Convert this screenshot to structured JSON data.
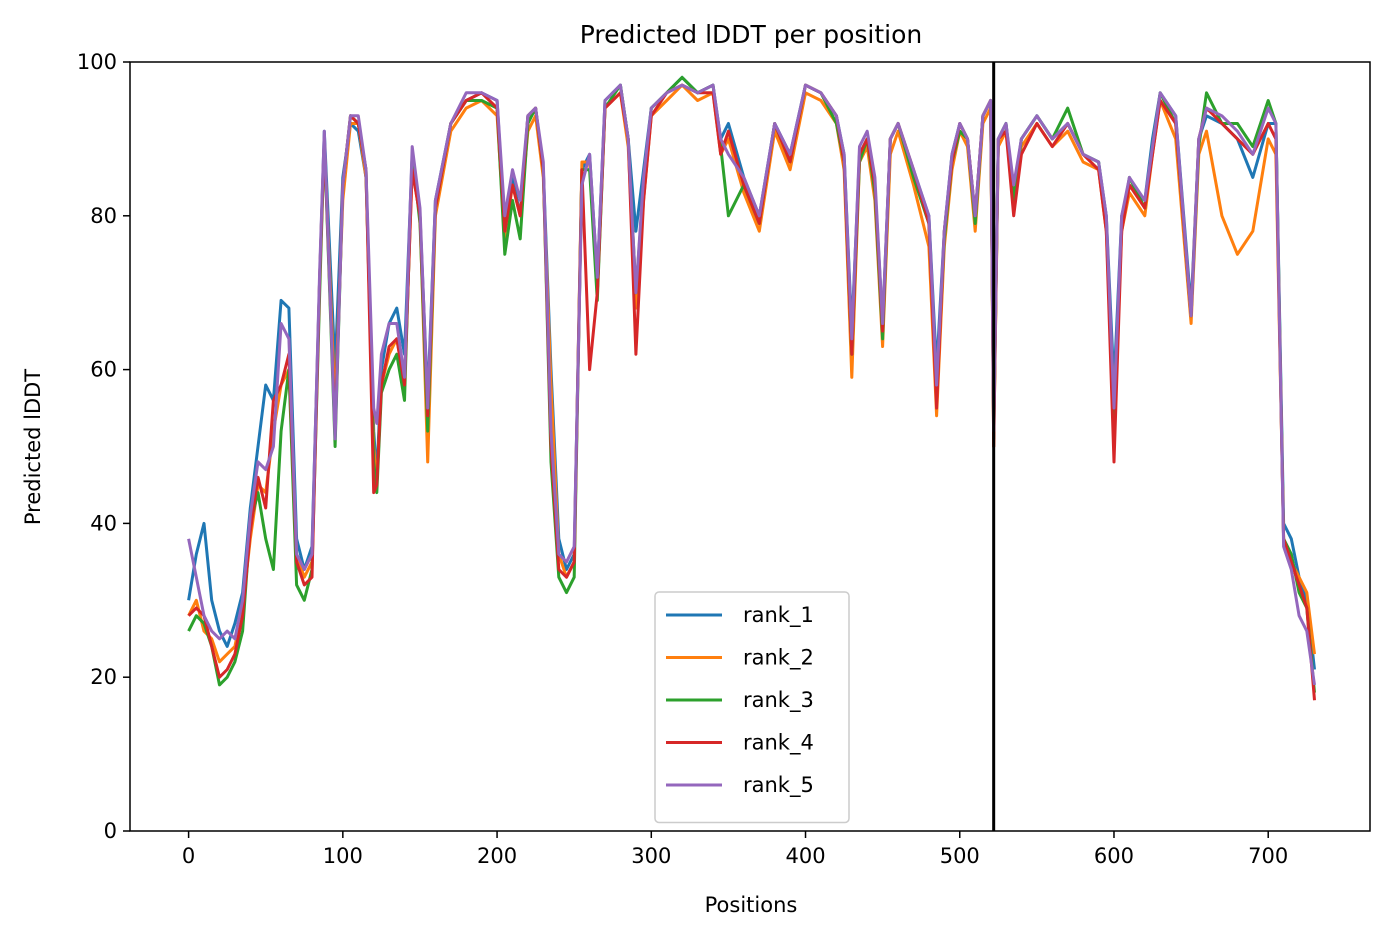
{
  "chart_data": {
    "type": "line",
    "title": "Predicted lDDT per position",
    "xlabel": "Positions",
    "ylabel": "Predicted lDDT",
    "xlim": [
      -38,
      766
    ],
    "ylim": [
      0,
      100
    ],
    "xticks": [
      0,
      100,
      200,
      300,
      400,
      500,
      600,
      700
    ],
    "yticks": [
      0,
      20,
      40,
      60,
      80,
      100
    ],
    "grid": false,
    "legend_position": "lower center",
    "vline": {
      "x": 522,
      "color": "#000000"
    },
    "x": [
      0,
      5,
      10,
      15,
      20,
      25,
      30,
      35,
      40,
      45,
      50,
      55,
      60,
      65,
      70,
      75,
      80,
      85,
      88,
      95,
      100,
      105,
      110,
      115,
      120,
      122,
      125,
      130,
      135,
      140,
      145,
      150,
      155,
      160,
      170,
      180,
      190,
      200,
      205,
      210,
      215,
      220,
      225,
      230,
      235,
      240,
      245,
      250,
      255,
      260,
      265,
      270,
      280,
      285,
      290,
      295,
      300,
      310,
      320,
      330,
      340,
      345,
      350,
      360,
      370,
      380,
      390,
      400,
      410,
      420,
      425,
      430,
      435,
      440,
      445,
      450,
      455,
      460,
      470,
      480,
      485,
      490,
      495,
      500,
      505,
      510,
      515,
      520,
      522,
      525,
      530,
      535,
      540,
      550,
      560,
      570,
      580,
      590,
      595,
      600,
      605,
      610,
      620,
      625,
      630,
      640,
      650,
      655,
      660,
      670,
      680,
      690,
      700,
      705,
      710,
      715,
      720,
      725,
      730
    ],
    "series": [
      {
        "name": "rank_1",
        "color": "#1f77b4",
        "values": [
          30,
          36,
          40,
          30,
          26,
          24,
          27,
          31,
          42,
          50,
          58,
          56,
          69,
          68,
          38,
          34,
          37,
          72,
          91,
          60,
          85,
          92,
          91,
          85,
          52,
          46,
          60,
          66,
          68,
          62,
          88,
          80,
          56,
          82,
          92,
          95,
          96,
          95,
          78,
          85,
          80,
          93,
          94,
          86,
          60,
          38,
          34,
          36,
          86,
          88,
          72,
          95,
          97,
          90,
          78,
          86,
          94,
          96,
          98,
          96,
          97,
          90,
          92,
          85,
          80,
          92,
          88,
          97,
          96,
          93,
          88,
          65,
          88,
          90,
          84,
          66,
          90,
          92,
          86,
          80,
          60,
          78,
          88,
          92,
          90,
          80,
          93,
          95,
          52,
          90,
          92,
          83,
          90,
          93,
          90,
          92,
          88,
          87,
          80,
          58,
          80,
          84,
          82,
          90,
          96,
          93,
          68,
          90,
          93,
          92,
          90,
          85,
          92,
          92,
          40,
          38,
          33,
          30,
          21
        ]
      },
      {
        "name": "rank_2",
        "color": "#ff7f0e",
        "values": [
          28,
          30,
          26,
          25,
          22,
          23,
          24,
          29,
          38,
          45,
          44,
          52,
          58,
          60,
          36,
          33,
          35,
          72,
          90,
          55,
          82,
          92,
          92,
          85,
          50,
          45,
          58,
          62,
          64,
          58,
          86,
          80,
          48,
          80,
          91,
          94,
          95,
          93,
          77,
          84,
          80,
          91,
          93,
          85,
          58,
          36,
          33,
          35,
          87,
          87,
          70,
          94,
          96,
          89,
          68,
          82,
          93,
          95,
          97,
          95,
          96,
          88,
          90,
          83,
          78,
          91,
          86,
          96,
          95,
          92,
          86,
          59,
          87,
          89,
          82,
          63,
          88,
          91,
          84,
          76,
          54,
          76,
          86,
          91,
          89,
          78,
          92,
          94,
          50,
          89,
          91,
          82,
          89,
          92,
          89,
          91,
          87,
          86,
          78,
          55,
          78,
          83,
          80,
          88,
          95,
          90,
          66,
          88,
          91,
          80,
          75,
          78,
          90,
          88,
          38,
          35,
          33,
          31,
          23
        ]
      },
      {
        "name": "rank_3",
        "color": "#2ca02c",
        "values": [
          26,
          28,
          27,
          24,
          19,
          20,
          22,
          26,
          40,
          44,
          38,
          34,
          52,
          60,
          32,
          30,
          34,
          70,
          90,
          50,
          84,
          93,
          92,
          86,
          48,
          44,
          57,
          60,
          62,
          56,
          88,
          79,
          52,
          81,
          92,
          95,
          95,
          94,
          75,
          82,
          77,
          92,
          94,
          86,
          48,
          33,
          31,
          33,
          86,
          86,
          69,
          94,
          97,
          90,
          70,
          84,
          94,
          96,
          98,
          96,
          97,
          89,
          80,
          84,
          79,
          92,
          87,
          97,
          96,
          92,
          87,
          62,
          87,
          90,
          83,
          64,
          90,
          92,
          85,
          79,
          57,
          77,
          87,
          91,
          90,
          79,
          93,
          95,
          51,
          90,
          92,
          82,
          90,
          93,
          90,
          94,
          88,
          87,
          79,
          54,
          79,
          85,
          81,
          89,
          96,
          92,
          67,
          89,
          96,
          92,
          92,
          89,
          95,
          92,
          38,
          36,
          31,
          29,
          18
        ]
      },
      {
        "name": "rank_4",
        "color": "#d62728",
        "values": [
          28,
          29,
          28,
          24,
          20,
          21,
          23,
          28,
          39,
          46,
          42,
          56,
          58,
          62,
          35,
          32,
          33,
          72,
          90,
          52,
          84,
          93,
          92,
          86,
          44,
          45,
          58,
          63,
          64,
          58,
          86,
          80,
          54,
          81,
          92,
          95,
          96,
          94,
          78,
          84,
          80,
          93,
          94,
          86,
          50,
          34,
          33,
          35,
          86,
          60,
          70,
          94,
          96,
          90,
          62,
          82,
          93,
          96,
          97,
          96,
          96,
          88,
          91,
          84,
          79,
          92,
          87,
          97,
          96,
          93,
          87,
          62,
          88,
          90,
          84,
          65,
          90,
          92,
          86,
          79,
          55,
          78,
          87,
          92,
          90,
          80,
          93,
          95,
          50,
          90,
          91,
          80,
          88,
          92,
          89,
          92,
          88,
          86,
          78,
          48,
          78,
          84,
          81,
          88,
          95,
          92,
          67,
          90,
          94,
          92,
          90,
          88,
          92,
          90,
          38,
          35,
          32,
          29,
          17
        ]
      },
      {
        "name": "rank_5",
        "color": "#9467bd",
        "values": [
          38,
          33,
          28,
          26,
          25,
          26,
          25,
          30,
          41,
          48,
          47,
          50,
          66,
          64,
          36,
          34,
          36,
          73,
          91,
          51,
          84,
          93,
          93,
          86,
          55,
          53,
          62,
          66,
          66,
          59,
          89,
          81,
          55,
          82,
          92,
          96,
          96,
          95,
          80,
          86,
          82,
          93,
          94,
          87,
          52,
          36,
          35,
          37,
          84,
          88,
          72,
          95,
          97,
          90,
          70,
          85,
          94,
          96,
          97,
          96,
          97,
          90,
          88,
          85,
          80,
          92,
          88,
          97,
          96,
          93,
          88,
          64,
          89,
          91,
          85,
          66,
          90,
          92,
          86,
          80,
          58,
          78,
          88,
          92,
          90,
          80,
          93,
          95,
          52,
          90,
          92,
          84,
          90,
          93,
          90,
          92,
          88,
          87,
          80,
          55,
          80,
          85,
          82,
          89,
          96,
          93,
          67,
          90,
          94,
          93,
          91,
          88,
          94,
          92,
          37,
          34,
          28,
          26,
          19
        ]
      }
    ]
  }
}
